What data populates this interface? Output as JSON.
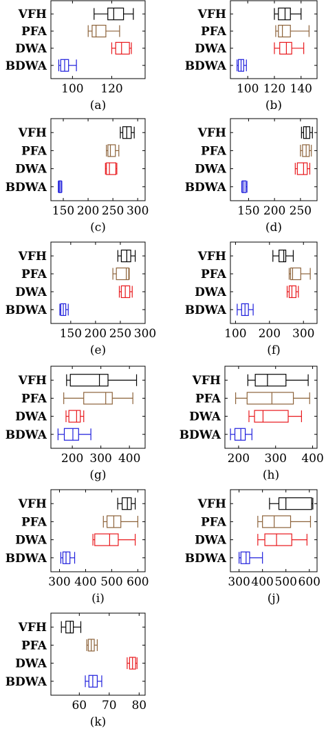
{
  "colors": {
    "VFH": "#000000",
    "PFA": "#8c6239",
    "DWA": "#e8171b",
    "BDWA": "#1e1edc"
  },
  "chart_data": [
    {
      "type": "box",
      "panel_label": "(a)",
      "categories": [
        "VFH",
        "PFA",
        "DWA",
        "BDWA"
      ],
      "xticks": [
        100,
        120
      ],
      "xlim": [
        89,
        137
      ],
      "boxes": [
        {
          "name": "VFH",
          "whisker_low": 111,
          "q1": 118,
          "median": 121,
          "q3": 126,
          "whisker_high": 131
        },
        {
          "name": "PFA",
          "whisker_low": 108,
          "q1": 110,
          "median": 112,
          "q3": 117,
          "whisker_high": 124
        },
        {
          "name": "DWA",
          "whisker_low": 120,
          "q1": 122,
          "median": 125,
          "q3": 129,
          "whisker_high": 130
        },
        {
          "name": "BDWA",
          "whisker_low": 93,
          "q1": 94,
          "median": 96,
          "q3": 98,
          "whisker_high": 102
        }
      ]
    },
    {
      "type": "box",
      "panel_label": "(b)",
      "categories": [
        "VFH",
        "PFA",
        "DWA",
        "BDWA"
      ],
      "xticks": [
        100,
        120,
        140
      ],
      "xlim": [
        87,
        152
      ],
      "boxes": [
        {
          "name": "VFH",
          "whisker_low": 120,
          "q1": 123,
          "median": 128,
          "q3": 132,
          "whisker_high": 140
        },
        {
          "name": "PFA",
          "whisker_low": 121,
          "q1": 123,
          "median": 126,
          "q3": 132,
          "whisker_high": 146
        },
        {
          "name": "DWA",
          "whisker_low": 120,
          "q1": 124,
          "median": 129,
          "q3": 133,
          "whisker_high": 142
        },
        {
          "name": "BDWA",
          "whisker_low": 92,
          "q1": 93,
          "median": 95,
          "q3": 97,
          "whisker_high": 99
        }
      ]
    },
    {
      "type": "box",
      "panel_label": "(c)",
      "categories": [
        "VFH",
        "PFA",
        "DWA",
        "BDWA"
      ],
      "xticks": [
        150,
        200,
        250,
        300
      ],
      "xlim": [
        125,
        315
      ],
      "boxes": [
        {
          "name": "VFH",
          "whisker_low": 265,
          "q1": 270,
          "median": 278,
          "q3": 287,
          "whisker_high": 293
        },
        {
          "name": "PFA",
          "whisker_low": 237,
          "q1": 240,
          "median": 245,
          "q3": 255,
          "whisker_high": 262
        },
        {
          "name": "DWA",
          "whisker_low": 235,
          "q1": 237,
          "median": 243,
          "q3": 256,
          "whisker_high": 258
        },
        {
          "name": "BDWA",
          "whisker_low": 140,
          "q1": 141,
          "median": 143,
          "q3": 146,
          "whisker_high": 147
        }
      ]
    },
    {
      "type": "box",
      "panel_label": "(d)",
      "categories": [
        "VFH",
        "PFA",
        "DWA",
        "BDWA"
      ],
      "xticks": [
        150,
        200,
        250
      ],
      "xlim": [
        115,
        282
      ],
      "boxes": [
        {
          "name": "VFH",
          "whisker_low": 252,
          "q1": 256,
          "median": 261,
          "q3": 268,
          "whisker_high": 273
        },
        {
          "name": "PFA",
          "whisker_low": 250,
          "q1": 254,
          "median": 261,
          "q3": 267,
          "whisker_high": 271
        },
        {
          "name": "DWA",
          "whisker_low": 240,
          "q1": 244,
          "median": 256,
          "q3": 263,
          "whisker_high": 268
        },
        {
          "name": "BDWA",
          "whisker_low": 137,
          "q1": 138,
          "median": 141,
          "q3": 145,
          "whisker_high": 147
        }
      ]
    },
    {
      "type": "box",
      "panel_label": "(e)",
      "categories": [
        "VFH",
        "PFA",
        "DWA",
        "BDWA"
      ],
      "xticks": [
        150,
        200,
        250,
        300
      ],
      "xlim": [
        110,
        300
      ],
      "boxes": [
        {
          "name": "VFH",
          "whisker_low": 245,
          "q1": 252,
          "median": 263,
          "q3": 271,
          "whisker_high": 280
        },
        {
          "name": "PFA",
          "whisker_low": 235,
          "q1": 242,
          "median": 262,
          "q3": 267,
          "whisker_high": 268
        },
        {
          "name": "DWA",
          "whisker_low": 248,
          "q1": 252,
          "median": 260,
          "q3": 269,
          "whisker_high": 274
        },
        {
          "name": "BDWA",
          "whisker_low": 128,
          "q1": 130,
          "median": 135,
          "q3": 140,
          "whisker_high": 145
        }
      ]
    },
    {
      "type": "box",
      "panel_label": "(f)",
      "categories": [
        "VFH",
        "PFA",
        "DWA",
        "BDWA"
      ],
      "xticks": [
        100,
        200,
        300
      ],
      "xlim": [
        85,
        340
      ],
      "boxes": [
        {
          "name": "VFH",
          "whisker_low": 210,
          "q1": 228,
          "median": 242,
          "q3": 248,
          "whisker_high": 270
        },
        {
          "name": "PFA",
          "whisker_low": 258,
          "q1": 262,
          "median": 268,
          "q3": 292,
          "whisker_high": 320
        },
        {
          "name": "DWA",
          "whisker_low": 252,
          "q1": 258,
          "median": 266,
          "q3": 278,
          "whisker_high": 285
        },
        {
          "name": "BDWA",
          "whisker_low": 105,
          "q1": 118,
          "median": 128,
          "q3": 138,
          "whisker_high": 152
        }
      ]
    },
    {
      "type": "box",
      "panel_label": "(g)",
      "categories": [
        "VFH",
        "PFA",
        "DWA",
        "BDWA"
      ],
      "xticks": [
        200,
        300,
        400
      ],
      "xlim": [
        125,
        455
      ],
      "boxes": [
        {
          "name": "VFH",
          "whisker_low": 180,
          "q1": 193,
          "median": 295,
          "q3": 325,
          "whisker_high": 425
        },
        {
          "name": "PFA",
          "whisker_low": 170,
          "q1": 240,
          "median": 317,
          "q3": 340,
          "whisker_high": 412
        },
        {
          "name": "DWA",
          "whisker_low": 178,
          "q1": 188,
          "median": 215,
          "q3": 228,
          "whisker_high": 240
        },
        {
          "name": "BDWA",
          "whisker_low": 150,
          "q1": 172,
          "median": 202,
          "q3": 222,
          "whisker_high": 265
        }
      ]
    },
    {
      "type": "box",
      "panel_label": "(h)",
      "categories": [
        "VFH",
        "PFA",
        "DWA",
        "BDWA"
      ],
      "xticks": [
        200,
        300,
        400
      ],
      "xlim": [
        163,
        412
      ],
      "boxes": [
        {
          "name": "VFH",
          "whisker_low": 225,
          "q1": 245,
          "median": 278,
          "q3": 328,
          "whisker_high": 388
        },
        {
          "name": "PFA",
          "whisker_low": 192,
          "q1": 223,
          "median": 290,
          "q3": 348,
          "whisker_high": 392
        },
        {
          "name": "DWA",
          "whisker_low": 228,
          "q1": 243,
          "median": 266,
          "q3": 334,
          "whisker_high": 370
        },
        {
          "name": "BDWA",
          "whisker_low": 178,
          "q1": 190,
          "median": 206,
          "q3": 218,
          "whisker_high": 236
        }
      ]
    },
    {
      "type": "box",
      "panel_label": "(i)",
      "categories": [
        "VFH",
        "PFA",
        "DWA",
        "BDWA"
      ],
      "xticks": [
        300,
        400,
        500,
        600
      ],
      "xlim": [
        267,
        628
      ],
      "boxes": [
        {
          "name": "VFH",
          "whisker_low": 523,
          "q1": 540,
          "median": 560,
          "q3": 575,
          "whisker_high": 590
        },
        {
          "name": "PFA",
          "whisker_low": 468,
          "q1": 482,
          "median": 508,
          "q3": 535,
          "whisker_high": 600
        },
        {
          "name": "DWA",
          "whisker_low": 428,
          "q1": 435,
          "median": 492,
          "q3": 525,
          "whisker_high": 590
        },
        {
          "name": "BDWA",
          "whisker_low": 305,
          "q1": 313,
          "median": 325,
          "q3": 340,
          "whisker_high": 358
        }
      ]
    },
    {
      "type": "box",
      "panel_label": "(j)",
      "categories": [
        "VFH",
        "PFA",
        "DWA",
        "BDWA"
      ],
      "xticks": [
        300,
        400,
        500,
        600
      ],
      "xlim": [
        263,
        633
      ],
      "boxes": [
        {
          "name": "VFH",
          "whisker_low": 430,
          "q1": 470,
          "median": 500,
          "q3": 610,
          "whisker_high": 615
        },
        {
          "name": "PFA",
          "whisker_low": 380,
          "q1": 400,
          "median": 450,
          "q3": 520,
          "whisker_high": 605
        },
        {
          "name": "DWA",
          "whisker_low": 380,
          "q1": 410,
          "median": 460,
          "q3": 525,
          "whisker_high": 590
        },
        {
          "name": "BDWA",
          "whisker_low": 300,
          "q1": 308,
          "median": 330,
          "q3": 345,
          "whisker_high": 400
        }
      ]
    },
    {
      "type": "box",
      "panel_label": "(k)",
      "categories": [
        "VFH",
        "PFA",
        "DWA",
        "BDWA"
      ],
      "xticks": [
        60,
        70,
        80
      ],
      "xlim": [
        50.5,
        82
      ],
      "boxes": [
        {
          "name": "VFH",
          "whisker_low": 54,
          "q1": 55.5,
          "median": 57,
          "q3": 58,
          "whisker_high": 60.5
        },
        {
          "name": "PFA",
          "whisker_low": 62.5,
          "q1": 63,
          "median": 64,
          "q3": 65,
          "whisker_high": 66
        },
        {
          "name": "DWA",
          "whisker_low": 76,
          "q1": 76.8,
          "median": 77.8,
          "q3": 78.8,
          "whisker_high": 79.3
        },
        {
          "name": "BDWA",
          "whisker_low": 62,
          "q1": 63.2,
          "median": 64.5,
          "q3": 66,
          "whisker_high": 67.5
        }
      ]
    }
  ]
}
